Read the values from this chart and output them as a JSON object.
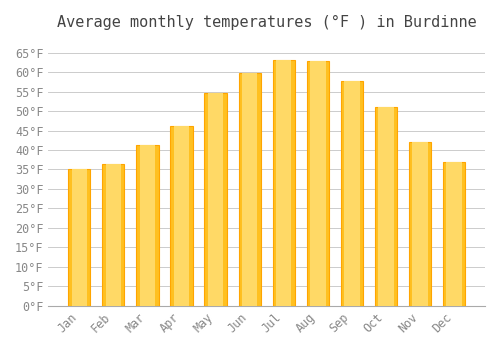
{
  "title": "Average monthly temperatures (°F ) in Burdinne",
  "months": [
    "Jan",
    "Feb",
    "Mar",
    "Apr",
    "May",
    "Jun",
    "Jul",
    "Aug",
    "Sep",
    "Oct",
    "Nov",
    "Dec"
  ],
  "values": [
    35.1,
    36.5,
    41.2,
    46.2,
    54.7,
    59.7,
    63.0,
    62.8,
    57.7,
    51.0,
    42.1,
    37.0
  ],
  "bar_color_main": "#FFC020",
  "bar_color_edge": "#FFA500",
  "background_color": "#FFFFFF",
  "grid_color": "#CCCCCC",
  "ytick_min": 0,
  "ytick_max": 65,
  "ytick_step": 5,
  "title_fontsize": 11,
  "tick_fontsize": 8.5,
  "font_family": "monospace"
}
